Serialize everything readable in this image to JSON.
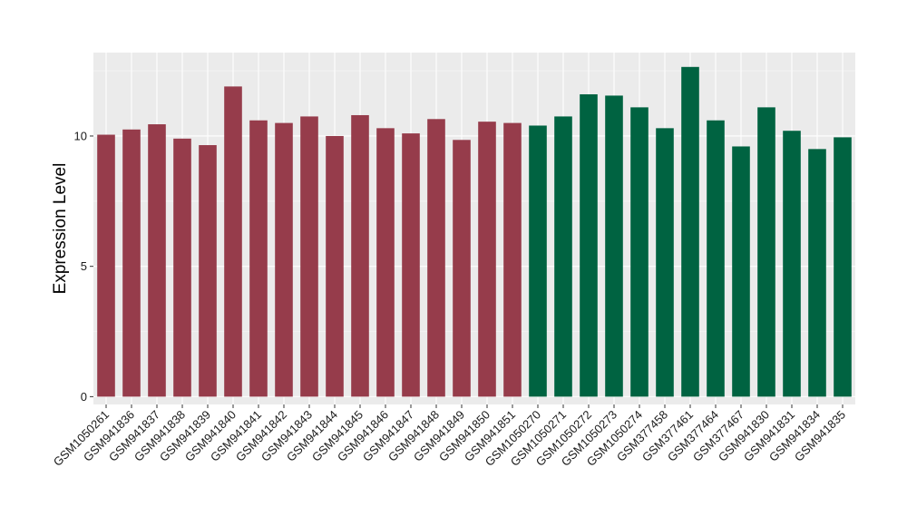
{
  "chart_data": {
    "type": "bar",
    "title": "",
    "xlabel": "",
    "ylabel": "Expression Level",
    "ylim": [
      -0.3,
      13.2
    ],
    "yticks": [
      0,
      5,
      10
    ],
    "grid": true,
    "legend": "none",
    "colors": {
      "group_a": "#963C4B",
      "group_b": "#006341",
      "panel": "#EBEBEB",
      "grid_major": "#FFFFFF"
    },
    "categories": [
      "GSM1050261",
      "GSM941836",
      "GSM941837",
      "GSM941838",
      "GSM941839",
      "GSM941840",
      "GSM941841",
      "GSM941842",
      "GSM941843",
      "GSM941844",
      "GSM941845",
      "GSM941846",
      "GSM941847",
      "GSM941848",
      "GSM941849",
      "GSM941850",
      "GSM941851",
      "GSM1050270",
      "GSM1050271",
      "GSM1050272",
      "GSM1050273",
      "GSM1050274",
      "GSM377458",
      "GSM377461",
      "GSM377464",
      "GSM377467",
      "GSM941830",
      "GSM941831",
      "GSM941834",
      "GSM941835"
    ],
    "values": [
      10.05,
      10.25,
      10.45,
      9.9,
      9.65,
      11.9,
      10.6,
      10.5,
      10.75,
      10.0,
      10.8,
      10.3,
      10.1,
      10.65,
      9.85,
      10.55,
      10.5,
      10.4,
      10.75,
      11.6,
      11.55,
      11.1,
      10.3,
      12.65,
      10.6,
      9.6,
      11.1,
      10.2,
      9.5,
      9.95
    ],
    "groups": [
      "group_a",
      "group_a",
      "group_a",
      "group_a",
      "group_a",
      "group_a",
      "group_a",
      "group_a",
      "group_a",
      "group_a",
      "group_a",
      "group_a",
      "group_a",
      "group_a",
      "group_a",
      "group_a",
      "group_a",
      "group_b",
      "group_b",
      "group_b",
      "group_b",
      "group_b",
      "group_b",
      "group_b",
      "group_b",
      "group_b",
      "group_b",
      "group_b",
      "group_b",
      "group_b"
    ]
  }
}
